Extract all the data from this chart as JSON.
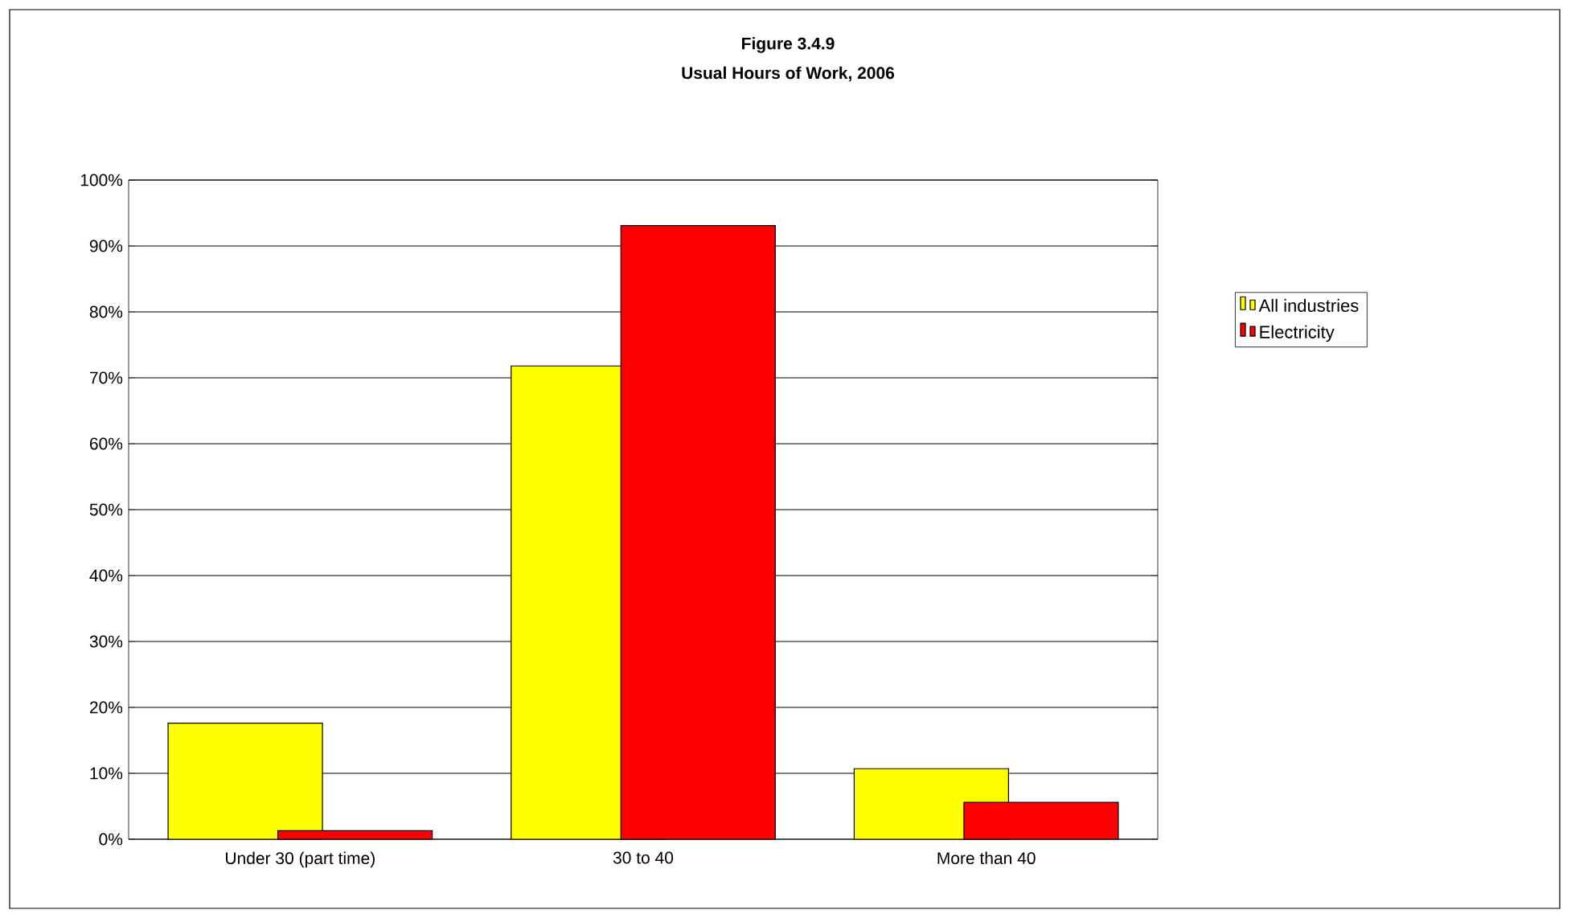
{
  "chart_data": {
    "type": "bar",
    "title": "Figure 3.4.9",
    "subtitle": "Usual Hours of Work, 2006",
    "categories": [
      "Under 30 (part time)",
      "30 to 40",
      "More than 40"
    ],
    "series": [
      {
        "name": "All industries",
        "color": "#ffff00",
        "values": [
          17.6,
          71.8,
          10.7
        ]
      },
      {
        "name": "Electricity",
        "color": "#ff0000",
        "values": [
          1.3,
          93.1,
          5.6
        ]
      }
    ],
    "ylim": [
      0,
      100
    ],
    "yticks": [
      {
        "value": 0,
        "label": "0%"
      },
      {
        "value": 10,
        "label": "10%"
      },
      {
        "value": 20,
        "label": "20%"
      },
      {
        "value": 30,
        "label": "30%"
      },
      {
        "value": 40,
        "label": "40%"
      },
      {
        "value": 50,
        "label": "50%"
      },
      {
        "value": 60,
        "label": "60%"
      },
      {
        "value": 70,
        "label": "70%"
      },
      {
        "value": 80,
        "label": "80%"
      },
      {
        "value": 90,
        "label": "90%"
      },
      {
        "value": 100,
        "label": "100%"
      }
    ],
    "grid": "y",
    "legend": "right"
  }
}
